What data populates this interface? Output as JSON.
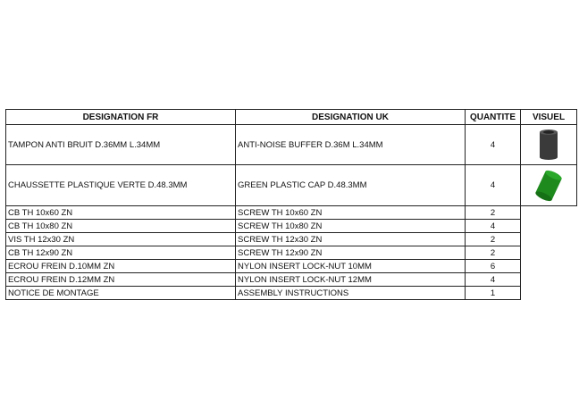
{
  "headers": {
    "fr": "DESIGNATION FR",
    "uk": "DESIGNATION UK",
    "qty": "QUANTITE",
    "visual": "VISUEL"
  },
  "rows": [
    {
      "fr": "TAMPON ANTI BRUIT D.36MM L.34MM",
      "uk": "ANTI-NOISE BUFFER D.36M L.34MM",
      "qty": "4",
      "visual": "black-cylinder-buffer-icon"
    },
    {
      "fr": "CHAUSSETTE PLASTIQUE VERTE D.48.3MM",
      "uk": "GREEN PLASTIC CAP D.48.3MM",
      "qty": "4",
      "visual": "green-plastic-cap-icon"
    },
    {
      "fr": "CB TH 10x60 ZN",
      "uk": "SCREW TH 10x60 ZN",
      "qty": "2"
    },
    {
      "fr": "CB TH 10x80 ZN",
      "uk": "SCREW TH 10x80 ZN",
      "qty": "4"
    },
    {
      "fr": "VIS TH 12x30 ZN",
      "uk": "SCREW TH 12x30 ZN",
      "qty": "2"
    },
    {
      "fr": "CB TH 12x90 ZN",
      "uk": "SCREW TH 12x90 ZN",
      "qty": "2"
    },
    {
      "fr": "ECROU FREIN D.10MM ZN",
      "uk": "NYLON INSERT LOCK-NUT 10MM",
      "qty": "6"
    },
    {
      "fr": "ECROU FREIN D.12MM ZN",
      "uk": "NYLON INSERT LOCK-NUT 12MM",
      "qty": "4"
    },
    {
      "fr": "NOTICE DE MONTAGE",
      "uk": "ASSEMBLY INSTRUCTIONS",
      "qty": "1"
    }
  ],
  "colors": {
    "buffer": "#3a3a3a",
    "cap": "#1e8a1e"
  }
}
